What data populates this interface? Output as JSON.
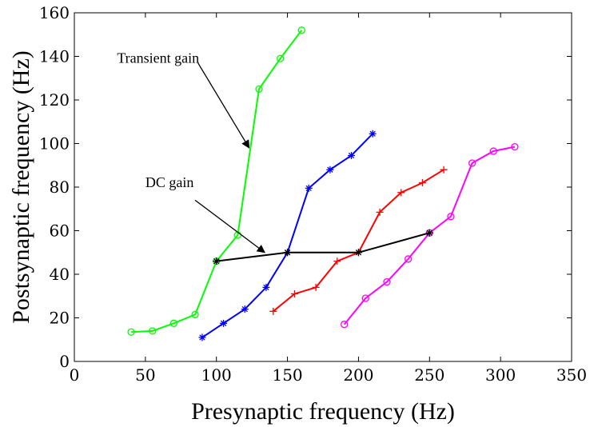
{
  "chart_data": {
    "type": "line",
    "xlabel": "Presynaptic frequency (Hz)",
    "ylabel": "Postsynaptic frequency (Hz)",
    "xlim": [
      0,
      350
    ],
    "ylim": [
      0,
      160
    ],
    "xticks": [
      0,
      50,
      100,
      150,
      200,
      250,
      300,
      350
    ],
    "yticks": [
      0,
      20,
      40,
      60,
      80,
      100,
      120,
      140,
      160
    ],
    "grid": false,
    "legend": "none",
    "series": [
      {
        "color": "#00ff00",
        "marker": "circle",
        "x": [
          40,
          55,
          70,
          85,
          100,
          115,
          130,
          145,
          160
        ],
        "y": [
          13.5,
          14,
          17.5,
          21.5,
          46,
          58,
          125,
          139,
          152
        ]
      },
      {
        "color": "#0000ff",
        "marker": "asterisk",
        "x": [
          90,
          105,
          120,
          135,
          150,
          165,
          180,
          195,
          210
        ],
        "y": [
          11,
          17.5,
          24,
          34,
          50,
          79.5,
          88,
          94.5,
          104.5
        ]
      },
      {
        "color": "#ff0000",
        "marker": "plus",
        "x": [
          140,
          155,
          170,
          185,
          200,
          215,
          230,
          245,
          260
        ],
        "y": [
          23,
          31,
          34,
          46,
          50,
          68.5,
          77.5,
          82,
          88
        ]
      },
      {
        "color": "#ff00ff",
        "marker": "circle",
        "x": [
          190,
          205,
          220,
          235,
          250,
          265,
          280,
          295,
          310
        ],
        "y": [
          17,
          29,
          36.5,
          47,
          59,
          66.5,
          91,
          96.5,
          98.5
        ]
      },
      {
        "color": "#000000",
        "marker": "asterisk",
        "x": [
          100,
          150,
          200,
          250
        ],
        "y": [
          46,
          50,
          50,
          59
        ]
      }
    ],
    "annotations": [
      {
        "text": "Transient gain",
        "text_at": [
          30,
          137
        ],
        "arrow_from": [
          87,
          137
        ],
        "arrow_to": [
          123,
          98
        ]
      },
      {
        "text": "DC gain",
        "text_at": [
          50,
          80
        ],
        "arrow_from": [
          85,
          74
        ],
        "arrow_to": [
          134,
          50
        ]
      }
    ]
  }
}
